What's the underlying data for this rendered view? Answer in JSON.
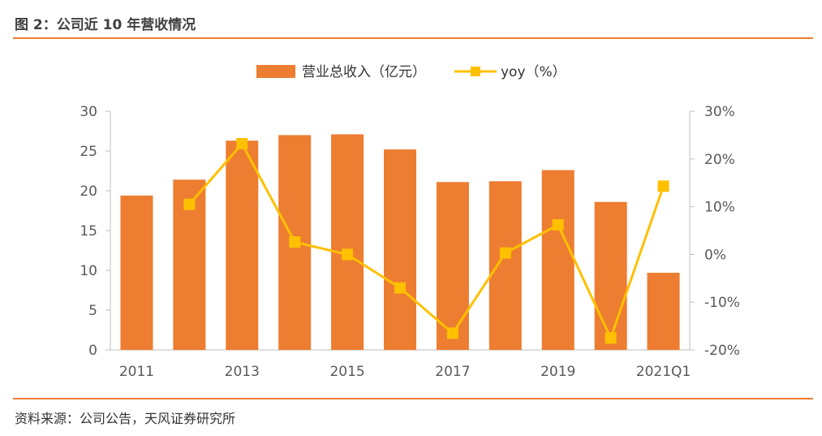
{
  "title": "图 2：公司近 10 年营收情况",
  "source": "资料来源：公司公告，天风证券研究所",
  "colors": {
    "bar": "#ED7D31",
    "line": "#FFC000",
    "rule": "#ED7D31"
  },
  "chart_data": {
    "type": "bar",
    "categories": [
      "2011",
      "2012",
      "2013",
      "2014",
      "2015",
      "2016",
      "2017",
      "2018",
      "2019",
      "2020",
      "2021Q1"
    ],
    "x_tick_labels": [
      "2011",
      "",
      "2013",
      "",
      "2015",
      "",
      "2017",
      "",
      "2019",
      "",
      "2021Q1"
    ],
    "series": [
      {
        "name": "营业总收入（亿元）",
        "type": "bar",
        "axis": "left",
        "values": [
          19.4,
          21.4,
          26.3,
          27.0,
          27.1,
          25.2,
          21.1,
          21.2,
          22.6,
          18.6,
          9.7
        ]
      },
      {
        "name": "yoy（%）",
        "type": "line",
        "axis": "right",
        "values": [
          null,
          10.5,
          23.2,
          2.6,
          0.0,
          -7.0,
          -16.5,
          0.3,
          6.2,
          -17.5,
          14.3
        ]
      }
    ],
    "left_axis": {
      "min": 0,
      "max": 30,
      "ticks": [
        "0",
        "5",
        "10",
        "15",
        "20",
        "25",
        "30"
      ]
    },
    "right_axis": {
      "min": -20,
      "max": 30,
      "ticks": [
        "-20%",
        "-10%",
        "0%",
        "10%",
        "20%",
        "30%"
      ]
    },
    "legend_position": "top-center",
    "grid": false
  }
}
